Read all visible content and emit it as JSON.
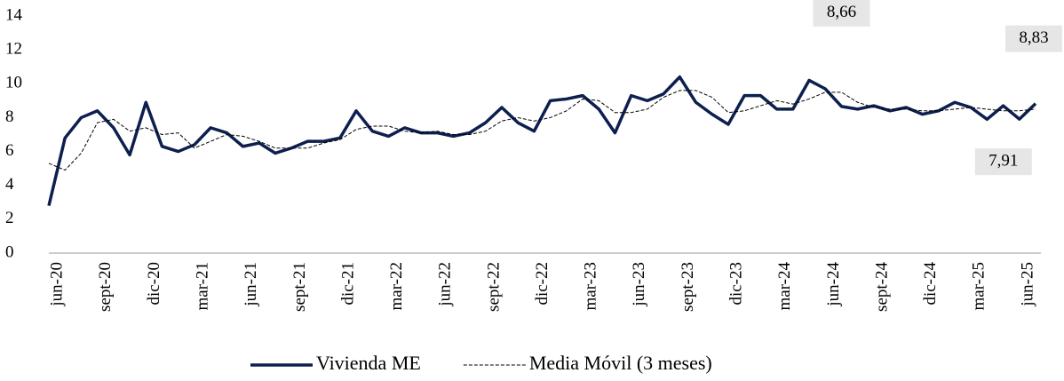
{
  "chart_data": {
    "type": "line",
    "categories": [
      null,
      "jun-20",
      null,
      null,
      "sept-20",
      null,
      null,
      "dic-20",
      null,
      null,
      "mar-21",
      null,
      null,
      "jun-21",
      null,
      null,
      "sept-21",
      null,
      null,
      "dic-21",
      null,
      null,
      "mar-22",
      null,
      null,
      "jun-22",
      null,
      null,
      "sept-22",
      null,
      null,
      "dic-22",
      null,
      null,
      "mar-23",
      null,
      null,
      "jun-23",
      null,
      null,
      "sept-23",
      null,
      null,
      "dic-23",
      null,
      null,
      "mar-24",
      null,
      null,
      "jun-24",
      null,
      null,
      "sept-24",
      null,
      null,
      "dic-24",
      null,
      null,
      "mar-25",
      null,
      null,
      "jun-25"
    ],
    "series": [
      {
        "name": "Vivienda ME",
        "color": "#0d1f4f",
        "style": "solid",
        "values": [
          2.8,
          6.8,
          8.0,
          8.4,
          7.4,
          5.8,
          8.9,
          6.3,
          6.0,
          6.4,
          7.4,
          7.1,
          6.3,
          6.5,
          5.9,
          6.2,
          6.6,
          6.6,
          6.8,
          8.4,
          7.2,
          6.9,
          7.4,
          7.1,
          7.1,
          6.9,
          7.1,
          7.7,
          8.6,
          7.7,
          7.2,
          9.0,
          9.1,
          9.3,
          8.5,
          7.1,
          9.3,
          9.0,
          9.4,
          10.4,
          8.9,
          8.2,
          7.6,
          9.3,
          9.3,
          8.5,
          8.5,
          10.2,
          9.7,
          8.66,
          8.5,
          8.7,
          8.4,
          8.6,
          8.2,
          8.4,
          8.9,
          8.6,
          7.9,
          8.7,
          7.91,
          8.83
        ],
        "value_labels": [
          null,
          null,
          null,
          null,
          null,
          null,
          null,
          null,
          null,
          null,
          null,
          null,
          null,
          null,
          null,
          null,
          null,
          null,
          null,
          null,
          null,
          null,
          null,
          null,
          null,
          null,
          null,
          null,
          null,
          null,
          null,
          null,
          null,
          null,
          null,
          null,
          null,
          null,
          null,
          null,
          null,
          null,
          null,
          null,
          null,
          null,
          null,
          null,
          null,
          "8,66",
          null,
          null,
          null,
          null,
          null,
          null,
          null,
          null,
          null,
          null,
          "7,91",
          "8,83"
        ]
      },
      {
        "name": "Media Móvil (3 meses)",
        "color": "#000000",
        "style": "dashed",
        "values": [
          5.3,
          4.9,
          5.9,
          7.7,
          7.9,
          7.2,
          7.4,
          7.0,
          7.1,
          6.2,
          6.6,
          7.0,
          6.9,
          6.6,
          6.2,
          6.2,
          6.2,
          6.5,
          6.7,
          7.3,
          7.5,
          7.5,
          7.2,
          7.1,
          7.2,
          7.0,
          7.0,
          7.2,
          7.8,
          8.0,
          7.8,
          8.0,
          8.4,
          9.1,
          9.0,
          8.3,
          8.3,
          8.5,
          9.2,
          9.6,
          9.6,
          9.2,
          8.3,
          8.4,
          8.7,
          9.0,
          8.8,
          9.1,
          9.5,
          9.5,
          8.9,
          8.6,
          8.5,
          8.5,
          8.4,
          8.4,
          8.5,
          8.6,
          8.5,
          8.4,
          8.4,
          8.5
        ]
      }
    ],
    "ylim": [
      0,
      14
    ],
    "yticks": [
      0,
      2,
      4,
      6,
      8,
      10,
      12,
      14
    ],
    "grid": false,
    "legend": "bottom"
  }
}
